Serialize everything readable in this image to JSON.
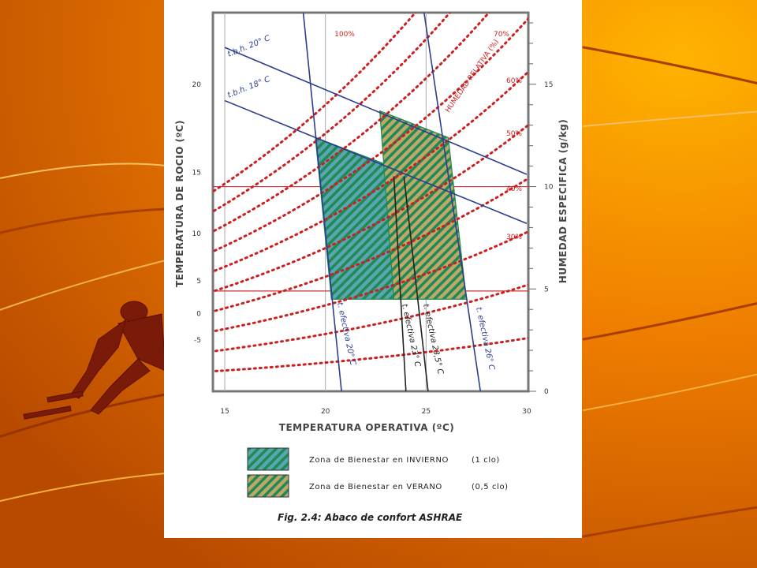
{
  "chart_data": {
    "type": "line",
    "title": "",
    "caption": "Fig. 2.4: Abaco de confort ASHRAE",
    "xlabel": "TEMPERATURA OPERATIVA (ºC)",
    "ylabel_left": "TEMPERATURA DE ROCIO (ºC)",
    "ylabel_right": "HUMEDAD ESPECIFICA (g/kg)",
    "xlim": [
      15,
      30
    ],
    "ylim_right": [
      0,
      18.5
    ],
    "x_ticks": [
      "15",
      "20",
      "25",
      "30"
    ],
    "y_left_ticks": [
      {
        "label": "20",
        "w": 15
      },
      {
        "label": "15",
        "w": 10.7
      },
      {
        "label": "10",
        "w": 7.7
      },
      {
        "label": "5",
        "w": 5.4
      },
      {
        "label": "0",
        "w": 3.8
      },
      {
        "label": "-5",
        "w": 2.5
      }
    ],
    "y_right_ticks": [
      "0",
      "5",
      "10",
      "15"
    ],
    "grid": true,
    "reference_lines_w": [
      4.9,
      10.0
    ],
    "rh_curves": [
      {
        "rh": 100,
        "label": "100%"
      },
      {
        "rh": 90,
        "label": ""
      },
      {
        "rh": 80,
        "label": ""
      },
      {
        "rh": 70,
        "label": "70%"
      },
      {
        "rh": 60,
        "label": "60%"
      },
      {
        "rh": 50,
        "label": "50%"
      },
      {
        "rh": 40,
        "label": "40%"
      },
      {
        "rh": 30,
        "label": "30%"
      },
      {
        "rh": 20,
        "label": ""
      },
      {
        "rh": 10,
        "label": ""
      }
    ],
    "rh_axis_label": "HUMEDAD RELATIVA (%)",
    "wet_bulb_lines": [
      {
        "label": "t.b.h. 20° C",
        "points": [
          [
            15,
            16.8
          ],
          [
            30,
            10.6
          ]
        ]
      },
      {
        "label": "t.b.h. 18° C",
        "points": [
          [
            15,
            14.2
          ],
          [
            30,
            8.2
          ]
        ]
      }
    ],
    "effective_temp_lines": [
      {
        "label": "t. efectiva 20° C",
        "color": "#2c3e8f",
        "points": [
          [
            18.9,
            18.5
          ],
          [
            20.8,
            0
          ]
        ]
      },
      {
        "label": "t. efectiva 23° C",
        "color": "#222222",
        "points": [
          [
            23.4,
            10.5
          ],
          [
            24.0,
            0
          ]
        ]
      },
      {
        "label": "t. efectiva 23,5° C",
        "color": "#222222",
        "points": [
          [
            23.9,
            10.5
          ],
          [
            25.1,
            0
          ]
        ]
      },
      {
        "label": "t. efectiva 26° C",
        "color": "#2c3e8f",
        "points": [
          [
            24.9,
            18.5
          ],
          [
            27.7,
            0
          ]
        ]
      }
    ],
    "zones": [
      {
        "name": "Zona de Bienestar en INVIERNO",
        "clo": "(1 clo)",
        "pattern": "winter",
        "polygon": [
          [
            19.5,
            12.4
          ],
          [
            23.5,
            10.9
          ],
          [
            24.3,
            4.5
          ],
          [
            20.3,
            4.5
          ]
        ]
      },
      {
        "name": "Zona de Bienestar en VERANO",
        "clo": "(0,5 clo)",
        "pattern": "summer",
        "polygon": [
          [
            22.7,
            13.7
          ],
          [
            26.1,
            12.4
          ],
          [
            27.0,
            4.5
          ],
          [
            23.4,
            4.5
          ]
        ]
      }
    ]
  },
  "legend": {
    "winter_label": "Zona de Bienestar en INVIERNO",
    "winter_clo": "(1 clo)",
    "summer_label": "Zona de Bienestar en VERANO",
    "summer_clo": "(0,5 clo)"
  },
  "colors": {
    "winter_fill": "#5aa6b0",
    "winter_hatch": "#1f8a55",
    "summer_fill": "#b6a56a",
    "summer_hatch": "#1f8a55",
    "rh_curve": "#cc1f1f",
    "blue_line": "#2c3e8f"
  }
}
